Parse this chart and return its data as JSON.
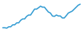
{
  "x": [
    0,
    1,
    2,
    3,
    4,
    5,
    6,
    7,
    8,
    9,
    10,
    11,
    12,
    13,
    14,
    15,
    16,
    17,
    18,
    19,
    20,
    21,
    22,
    23,
    24,
    25,
    26,
    27,
    28,
    29,
    30,
    31,
    32,
    33,
    34,
    35,
    36,
    37,
    38,
    39
  ],
  "y": [
    1,
    1,
    0.8,
    1.5,
    1.5,
    2.5,
    2.5,
    3.5,
    3.5,
    4.8,
    5.5,
    5.5,
    6.8,
    7.5,
    7.5,
    9.0,
    10.5,
    10.5,
    11.2,
    12.0,
    11.5,
    11.5,
    10.2,
    9.0,
    8.5,
    7.0,
    6.8,
    7.5,
    7.0,
    7.0,
    6.0,
    6.0,
    7.2,
    8.5,
    9.0,
    9.5,
    10.5,
    11.5,
    12.5,
    13.0
  ],
  "line_color": "#3a9fd4",
  "background_color": "#ffffff",
  "linewidth": 1.3
}
